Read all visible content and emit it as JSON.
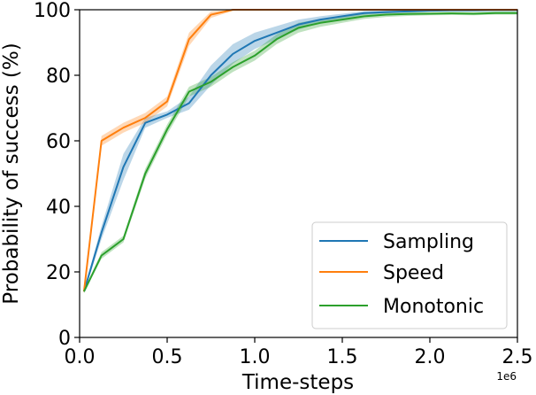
{
  "chart_data": {
    "type": "line",
    "title": "",
    "xlabel": "Time-steps",
    "ylabel": "Probability of success (%)",
    "x_offset_label": "1e6",
    "xlim": [
      0,
      2.5
    ],
    "ylim": [
      0,
      100
    ],
    "xticks": [
      0.0,
      0.5,
      1.0,
      1.5,
      2.0,
      2.5
    ],
    "xtick_labels": [
      "0.0",
      "0.5",
      "1.0",
      "1.5",
      "2.0",
      "2.5"
    ],
    "yticks": [
      0,
      20,
      40,
      60,
      80,
      100
    ],
    "ytick_labels": [
      "0",
      "20",
      "40",
      "60",
      "80",
      "100"
    ],
    "legend_position": "lower-right",
    "grid": false,
    "series": [
      {
        "name": "Sampling",
        "color": "#1f77b4",
        "x": [
          0.025,
          0.125,
          0.25,
          0.375,
          0.5,
          0.625,
          0.75,
          0.875,
          1.0,
          1.125,
          1.25,
          1.375,
          1.5,
          1.625,
          1.75,
          1.875,
          2.0,
          2.125,
          2.25,
          2.375,
          2.5
        ],
        "values": [
          14,
          32,
          52,
          65.5,
          68,
          71.5,
          80,
          86.5,
          90.5,
          93,
          95.5,
          97,
          98,
          99,
          99.3,
          99.5,
          99.7,
          99.8,
          99.8,
          99.9,
          99.9
        ],
        "band": [
          0.5,
          2,
          4,
          1.5,
          1,
          2,
          3,
          3,
          2.5,
          2,
          1.5,
          1,
          0.8,
          0.6,
          0.4,
          0.3,
          0.2,
          0.2,
          0.2,
          0.1,
          0.1
        ]
      },
      {
        "name": "Speed",
        "color": "#ff7f0e",
        "x": [
          0.025,
          0.125,
          0.25,
          0.375,
          0.5,
          0.625,
          0.75,
          0.875,
          1.0,
          1.25,
          1.5,
          1.75,
          2.0,
          2.25,
          2.5
        ],
        "values": [
          14,
          60,
          64,
          67,
          72,
          91,
          98.5,
          100,
          100,
          100,
          100,
          100,
          100,
          100,
          100
        ],
        "band": [
          0.5,
          1.5,
          1.5,
          1.5,
          1.5,
          2,
          1,
          0.3,
          0,
          0,
          0,
          0,
          0,
          0,
          0
        ]
      },
      {
        "name": "Monotonic",
        "color": "#2ca02c",
        "x": [
          0.025,
          0.125,
          0.25,
          0.375,
          0.5,
          0.625,
          0.75,
          0.875,
          1.0,
          1.125,
          1.25,
          1.375,
          1.5,
          1.625,
          1.75,
          1.875,
          2.0,
          2.125,
          2.25,
          2.375,
          2.5
        ],
        "values": [
          14,
          25,
          30,
          50,
          63.5,
          75,
          78,
          82.5,
          86,
          91,
          94.5,
          96,
          97,
          98,
          98.5,
          98.7,
          98.8,
          98.9,
          98.8,
          99,
          99
        ],
        "band": [
          0.5,
          1,
          1,
          1.5,
          1.5,
          1.5,
          1.5,
          1.5,
          1.5,
          1.5,
          1.5,
          1.2,
          1,
          0.8,
          0.7,
          0.6,
          0.5,
          0.5,
          0.5,
          0.5,
          0.5
        ]
      }
    ]
  }
}
